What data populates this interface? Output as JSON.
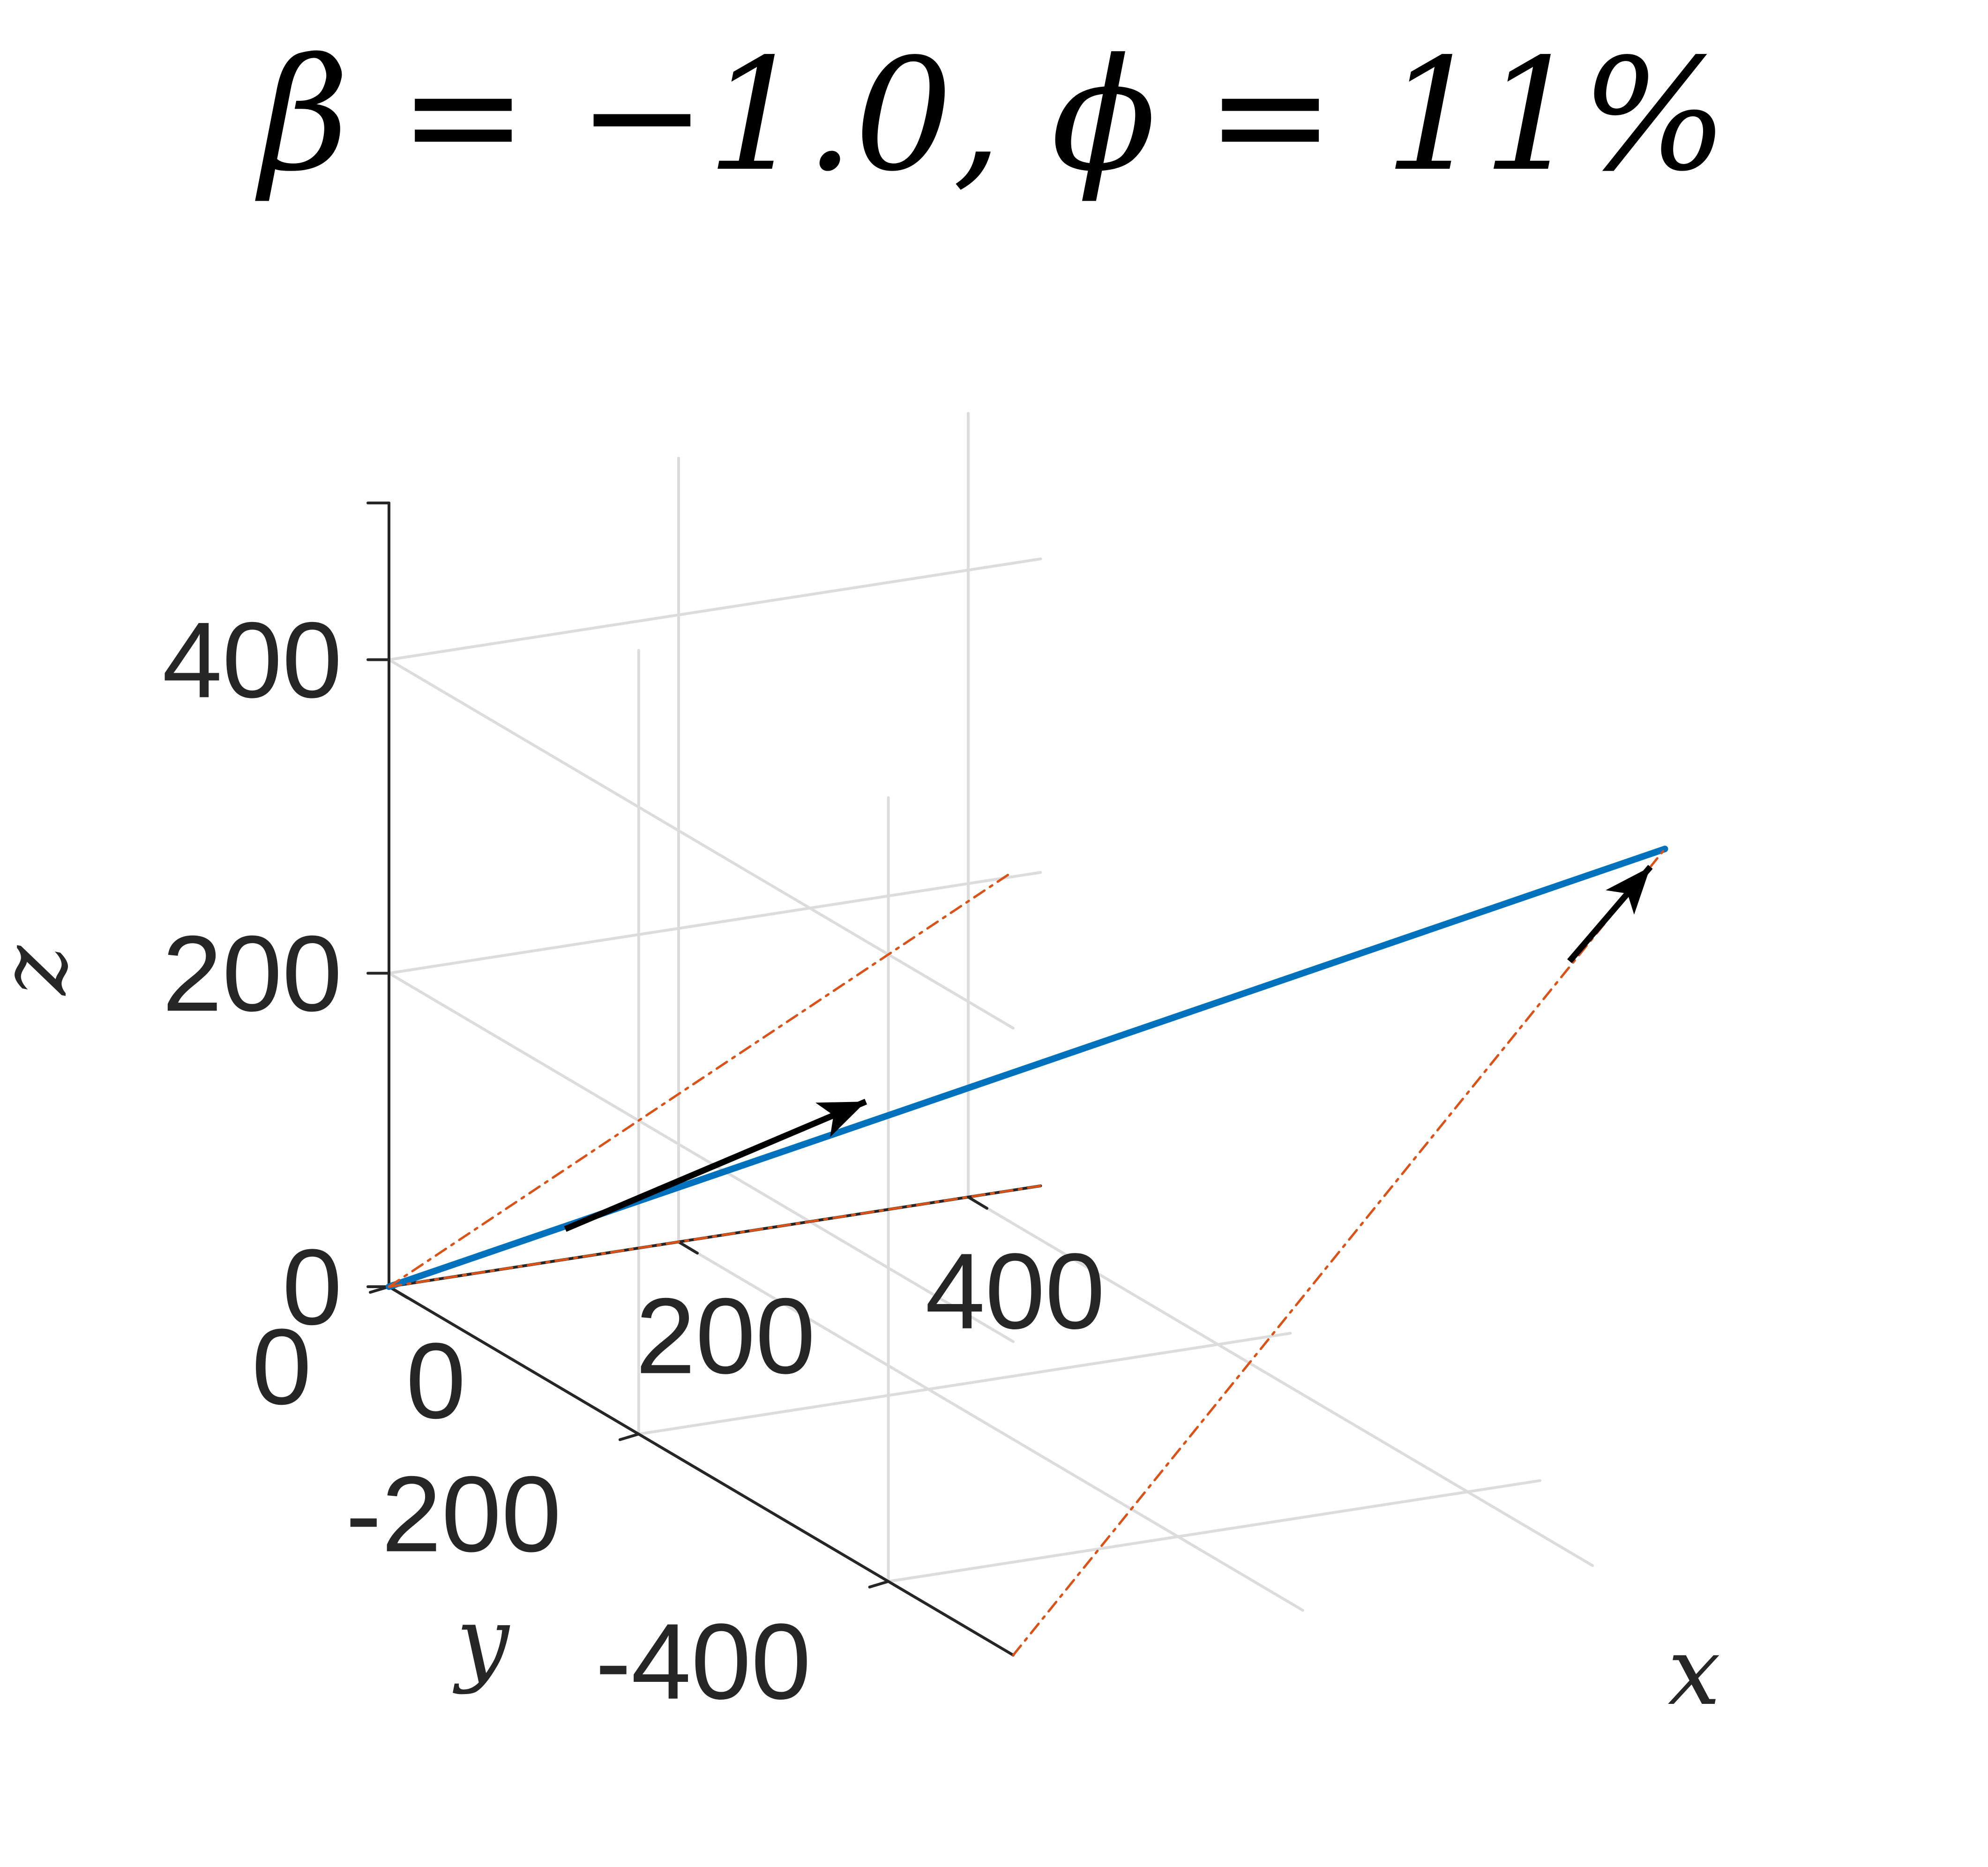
{
  "chart_data": {
    "type": "line3d",
    "title": "β = −1.0, ϕ = 11%",
    "xlabel": "x",
    "ylabel": "y",
    "zlabel": "z",
    "xlim": [
      0,
      450
    ],
    "ylim": [
      -500,
      0
    ],
    "zlim": [
      0,
      500
    ],
    "xticks": [
      "0",
      "200",
      "400"
    ],
    "yticks": [
      "0",
      "-200",
      "-400"
    ],
    "zticks": [
      "0",
      "200",
      "400"
    ],
    "grid": true,
    "series": [
      {
        "color": "#0072BD",
        "style": "solid",
        "points": [
          [
            0,
            0,
            0
          ],
          [
            450,
            -500,
            450
          ]
        ]
      },
      {
        "color": "#D95319",
        "style": "dash-dot",
        "points": [
          [
            0,
            0,
            0
          ],
          [
            0,
            -500,
            500
          ]
        ]
      },
      {
        "color": "#D95319",
        "style": "dash-dot",
        "points": [
          [
            0,
            0,
            0
          ],
          [
            450,
            0,
            0
          ]
        ]
      },
      {
        "color": "#D95319",
        "style": "dash-dot",
        "points": [
          [
            0,
            -500,
            0
          ],
          [
            450,
            -500,
            450
          ]
        ]
      }
    ],
    "annotations": [
      {
        "type": "arrow",
        "color": "#000000",
        "from": [
          70,
          -60,
          55
        ],
        "to": [
          200,
          -150,
          160
        ]
      },
      {
        "type": "arrow",
        "color": "#000000",
        "from": [
          410,
          -470,
          370
        ],
        "to": [
          440,
          -500,
          440
        ]
      }
    ]
  }
}
